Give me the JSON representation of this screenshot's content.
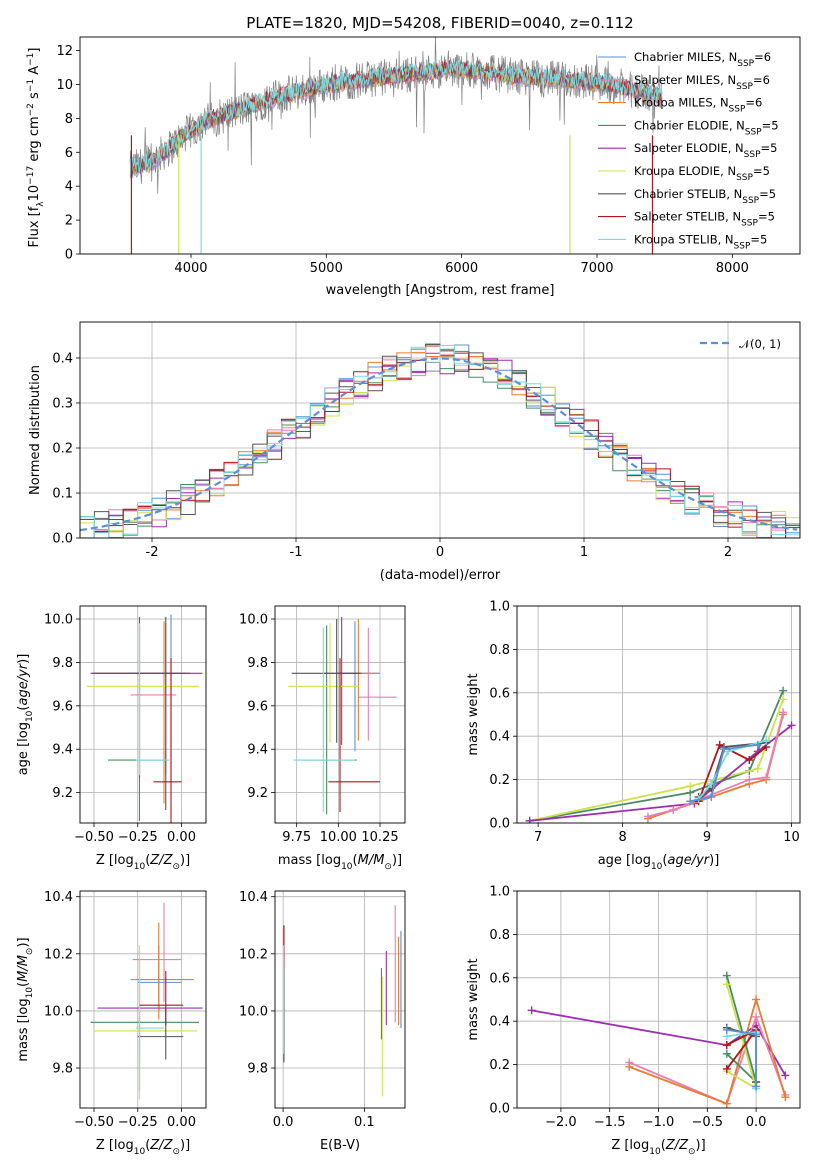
{
  "chart_data": [
    {
      "id": "spectrum",
      "type": "line",
      "title": "PLATE=1820, MJD=54208, FIBERID=0040, z=0.112",
      "xlabel": "wavelength [Angstrom, rest frame]",
      "ylabel": "Flux [f_λ10^-17 erg cm^-2 s^-1 A^-1]",
      "xlim": [
        3180,
        8500
      ],
      "ylim": [
        0,
        12.8
      ],
      "xticks": [
        4000,
        5000,
        6000,
        7000,
        8000
      ],
      "yticks": [
        0,
        2,
        4,
        6,
        8,
        10,
        12
      ],
      "grid": false,
      "legend_position": "right",
      "data_line_color": "#808080",
      "approx_continuum": {
        "x": [
          3550,
          3700,
          3850,
          3950,
          4100,
          4300,
          4500,
          4700,
          4900,
          5100,
          5300,
          5500,
          5700,
          5900,
          6100,
          6300,
          6500,
          6700,
          6900,
          7100,
          7300,
          7500
        ],
        "y": [
          5.0,
          5.4,
          6.3,
          7.0,
          7.8,
          8.3,
          8.9,
          9.4,
          9.8,
          10.1,
          10.3,
          10.5,
          10.7,
          10.9,
          10.8,
          10.6,
          10.4,
          10.3,
          10.2,
          10.0,
          9.6,
          9.2
        ]
      },
      "series": [
        {
          "name": "Chabrier MILES, N_SSP=6",
          "color": "#5b8fd6"
        },
        {
          "name": "Salpeter MILES, N_SSP=6",
          "color": "#e97fb1"
        },
        {
          "name": "Kroupa MILES, N_SSP=6",
          "color": "#e67d33"
        },
        {
          "name": "Chabrier ELODIE, N_SSP=5",
          "color": "#4c8a64"
        },
        {
          "name": "Salpeter ELODIE, N_SSP=5",
          "color": "#9b2fae"
        },
        {
          "name": "Kroupa ELODIE, N_SSP=5",
          "color": "#cde34e"
        },
        {
          "name": "Chabrier STELIB, N_SSP=5",
          "color": "#555555"
        },
        {
          "name": "Salpeter STELIB, N_SSP=5",
          "color": "#b0151d"
        },
        {
          "name": "Kroupa STELIB, N_SSP=5",
          "color": "#7fd9de"
        }
      ]
    },
    {
      "id": "residuals",
      "type": "line",
      "xlabel": "(data-model)/error",
      "ylabel": "Normed distribution",
      "xlim": [
        -2.5,
        2.5
      ],
      "ylim": [
        0,
        0.48
      ],
      "xticks": [
        -2,
        -1,
        0,
        1,
        2
      ],
      "yticks": [
        0.0,
        0.1,
        0.2,
        0.3,
        0.4
      ],
      "grid": true,
      "legend_position": "upper right",
      "gaussian_label": "𝒩(0, 1)",
      "gaussian_color": "#5b8fd6"
    },
    {
      "id": "age_vs_Z",
      "type": "scatter",
      "xlabel": "Z [log10(Z/Z⊙)]",
      "ylabel": "age [log10(age/yr)]",
      "xlim": [
        -0.58,
        0.14
      ],
      "ylim": [
        9.06,
        10.06
      ],
      "xticks": [
        -0.5,
        -0.25,
        0.0
      ],
      "xticklabels": [
        "−0.50",
        "−0.25",
        "0.00"
      ],
      "yticks": [
        9.2,
        9.4,
        9.6,
        9.8,
        10.0
      ],
      "grid": true,
      "points": [
        {
          "color": "#5b8fd6",
          "x": -0.06,
          "xerr": [
            0.24,
            0.06
          ],
          "y": 9.75,
          "yerr": [
            0.47,
            0.27
          ]
        },
        {
          "color": "#e97fb1",
          "x": -0.09,
          "xerr": [
            0.2,
            0.06
          ],
          "y": 9.65,
          "yerr": [
            0.37,
            0.33
          ]
        },
        {
          "color": "#e67d33",
          "x": -0.1,
          "xerr": [
            0.4,
            0.13
          ],
          "y": 9.75,
          "yerr": [
            0.6,
            0.24
          ]
        },
        {
          "color": "#4c8a64",
          "x": -0.24,
          "xerr": [
            0.18,
            0.16
          ],
          "y": 9.35,
          "yerr": [
            0.28,
            0.64
          ]
        },
        {
          "color": "#9b2fae",
          "x": -0.24,
          "xerr": [
            0.28,
            0.36
          ],
          "y": 9.75,
          "yerr": [
            0.48,
            0.26
          ]
        },
        {
          "color": "#cde34e",
          "x": -0.24,
          "xerr": [
            0.3,
            0.34
          ],
          "y": 9.69,
          "yerr": [
            0.41,
            0.29
          ]
        },
        {
          "color": "#555555",
          "x": -0.09,
          "xerr": [
            0.42,
            0.14
          ],
          "y": 9.75,
          "yerr": [
            0.63,
            0.26
          ]
        },
        {
          "color": "#b0151d",
          "x": -0.06,
          "xerr": [
            0.1,
            0.06
          ],
          "y": 9.25,
          "yerr": [
            0.23,
            0.57
          ]
        },
        {
          "color": "#7fd9de",
          "x": -0.24,
          "xerr": [
            0.02,
            0.17
          ],
          "y": 9.35,
          "yerr": [
            0.07,
            0.62
          ]
        }
      ]
    },
    {
      "id": "age_vs_mass",
      "type": "scatter",
      "xlabel": "mass [log10(M/M⊙)]",
      "ylabel": "",
      "xlim": [
        9.62,
        10.4
      ],
      "ylim": [
        9.06,
        10.06
      ],
      "xticks": [
        9.75,
        10.0,
        10.25
      ],
      "xticklabels": [
        "9.75",
        "10.00",
        "10.25"
      ],
      "yticks": [
        9.2,
        9.4,
        9.6,
        9.8,
        10.0
      ],
      "grid": true,
      "points": [
        {
          "color": "#5b8fd6",
          "x": 10.1,
          "xerr": [
            0.11,
            0.15
          ],
          "y": 9.75,
          "yerr": [
            0.36,
            0.24
          ]
        },
        {
          "color": "#e97fb1",
          "x": 10.18,
          "xerr": [
            0.06,
            0.17
          ],
          "y": 9.64,
          "yerr": [
            0.2,
            0.32
          ]
        },
        {
          "color": "#e67d33",
          "x": 10.12,
          "xerr": [
            0.04,
            0.13
          ],
          "y": 9.75,
          "yerr": [
            0.31,
            0.25
          ]
        },
        {
          "color": "#4c8a64",
          "x": 9.93,
          "xerr": [
            0.15,
            0.18
          ],
          "y": 9.35,
          "yerr": [
            0.25,
            0.62
          ]
        },
        {
          "color": "#9b2fae",
          "x": 10.02,
          "xerr": [
            0.11,
            0.12
          ],
          "y": 9.75,
          "yerr": [
            0.33,
            0.26
          ]
        },
        {
          "color": "#cde34e",
          "x": 9.95,
          "xerr": [
            0.25,
            0.17
          ],
          "y": 9.69,
          "yerr": [
            0.26,
            0.29
          ]
        },
        {
          "color": "#555555",
          "x": 9.99,
          "xerr": [
            0.27,
            0.14
          ],
          "y": 9.75,
          "yerr": [
            0.32,
            0.25
          ]
        },
        {
          "color": "#b0151d",
          "x": 10.01,
          "xerr": [
            0.07,
            0.24
          ],
          "y": 9.25,
          "yerr": [
            0.14,
            0.57
          ]
        },
        {
          "color": "#7fd9de",
          "x": 9.91,
          "xerr": [
            0.18,
            0.19
          ],
          "y": 9.35,
          "yerr": [
            0.24,
            0.61
          ]
        }
      ]
    },
    {
      "id": "weight_vs_age",
      "type": "line",
      "xlabel": "age [log10(age/yr)]",
      "ylabel": "mass weight",
      "xlim": [
        6.75,
        10.1
      ],
      "ylim": [
        0,
        1.0
      ],
      "xticks": [
        7,
        8,
        9,
        10
      ],
      "yticks": [
        0.0,
        0.2,
        0.4,
        0.6,
        0.8,
        1.0
      ],
      "grid": true,
      "series": [
        {
          "color": "#4c8a64",
          "x": [
            6.9,
            8.8,
            9.5,
            9.9
          ],
          "y": [
            0.01,
            0.14,
            0.24,
            0.61
          ]
        },
        {
          "color": "#cde34e",
          "x": [
            6.9,
            8.8,
            9.6,
            9.9
          ],
          "y": [
            0.01,
            0.17,
            0.25,
            0.57
          ]
        },
        {
          "color": "#9b2fae",
          "x": [
            6.9,
            8.85,
            9.6,
            10.0
          ],
          "y": [
            0.01,
            0.09,
            0.33,
            0.45
          ]
        },
        {
          "color": "#e67d33",
          "x": [
            8.3,
            8.6,
            9.5,
            9.7,
            9.9
          ],
          "y": [
            0.02,
            0.06,
            0.18,
            0.2,
            0.5
          ]
        },
        {
          "color": "#e97fb1",
          "x": [
            8.3,
            8.6,
            9.5,
            9.7,
            9.9
          ],
          "y": [
            0.03,
            0.06,
            0.2,
            0.21,
            0.51
          ]
        },
        {
          "color": "#b0151d",
          "x": [
            8.9,
            9.15,
            9.5,
            9.7
          ],
          "y": [
            0.1,
            0.36,
            0.29,
            0.35
          ]
        },
        {
          "color": "#555555",
          "x": [
            8.9,
            9.05,
            9.2,
            9.7
          ],
          "y": [
            0.12,
            0.16,
            0.35,
            0.37
          ]
        },
        {
          "color": "#7fd9de",
          "x": [
            8.9,
            9.05,
            9.25,
            9.7
          ],
          "y": [
            0.11,
            0.18,
            0.33,
            0.38
          ]
        },
        {
          "color": "#5b8fd6",
          "x": [
            8.8,
            9.05,
            9.2,
            9.6
          ],
          "y": [
            0.1,
            0.12,
            0.34,
            0.36
          ]
        }
      ]
    },
    {
      "id": "mass_vs_Z",
      "type": "scatter",
      "xlabel": "Z [log10(Z/Z⊙)]",
      "ylabel": "mass [log10(M/M⊙)]",
      "xlim": [
        -0.58,
        0.14
      ],
      "ylim": [
        9.66,
        10.42
      ],
      "xticks": [
        -0.5,
        -0.25,
        0.0
      ],
      "xticklabels": [
        "−0.50",
        "−0.25",
        "0.00"
      ],
      "yticks": [
        9.8,
        10.0,
        10.2,
        10.4
      ],
      "grid": true,
      "points": [
        {
          "color": "#5b8fd6",
          "x": -0.13,
          "xerr": [
            0.12,
            0.13
          ],
          "y": 10.1,
          "yerr": [
            0.1,
            0.13
          ]
        },
        {
          "color": "#e97fb1",
          "x": -0.1,
          "xerr": [
            0.18,
            0.1
          ],
          "y": 10.18,
          "yerr": [
            0.15,
            0.2
          ]
        },
        {
          "color": "#e67d33",
          "x": -0.13,
          "xerr": [
            0.16,
            0.2
          ],
          "y": 10.11,
          "yerr": [
            0.14,
            0.2
          ]
        },
        {
          "color": "#4c8a64",
          "x": -0.24,
          "xerr": [
            0.28,
            0.34
          ],
          "y": 9.96,
          "yerr": [
            0.24,
            0.15
          ]
        },
        {
          "color": "#9b2fae",
          "x": -0.24,
          "xerr": [
            0.24,
            0.36
          ],
          "y": 10.01,
          "yerr": [
            0.17,
            0.2
          ]
        },
        {
          "color": "#cde34e",
          "x": -0.24,
          "xerr": [
            0.26,
            0.33
          ],
          "y": 9.93,
          "yerr": [
            0.24,
            0.3
          ]
        },
        {
          "color": "#555555",
          "x": -0.09,
          "xerr": [
            0.16,
            0.1
          ],
          "y": 9.91,
          "yerr": [
            0.08,
            0.1
          ]
        },
        {
          "color": "#b0151d",
          "x": -0.09,
          "xerr": [
            0.15,
            0.1
          ],
          "y": 10.02,
          "yerr": [
            0.07,
            0.12
          ]
        },
        {
          "color": "#7fd9de",
          "x": -0.24,
          "xerr": [
            0.02,
            0.14
          ],
          "y": 9.94,
          "yerr": [
            0.22,
            0.04
          ]
        }
      ]
    },
    {
      "id": "mass_vs_ebv",
      "type": "scatter",
      "xlabel": "E(B-V)",
      "ylabel": "",
      "xlim": [
        -0.01,
        0.15
      ],
      "ylim": [
        9.66,
        10.42
      ],
      "xticks": [
        0.0,
        0.1
      ],
      "xticklabels": [
        "0.0",
        "0.1"
      ],
      "yticks": [
        9.8,
        10.0,
        10.2,
        10.4
      ],
      "grid": true,
      "points": [
        {
          "color": "#b0151d",
          "x": 0.001,
          "y": 10.1,
          "yerr": [
            0.0,
            0.2
          ]
        },
        {
          "color": "#555555",
          "x": 0.001,
          "y": 10.05,
          "yerr": [
            0.23,
            0.1
          ]
        },
        {
          "color": "#7fd9de",
          "x": 0.0005,
          "y": 9.95,
          "yerr": [
            0.1,
            0.28
          ]
        },
        {
          "color": "#cde34e",
          "x": 0.122,
          "y": 9.9,
          "yerr": [
            0.2,
            0.22
          ]
        },
        {
          "color": "#4c8a64",
          "x": 0.121,
          "y": 10.0,
          "yerr": [
            0.1,
            0.15
          ]
        },
        {
          "color": "#9b2fae",
          "x": 0.127,
          "y": 10.05,
          "yerr": [
            0.1,
            0.16
          ]
        },
        {
          "color": "#e97fb1",
          "x": 0.138,
          "y": 10.1,
          "yerr": [
            0.14,
            0.27
          ]
        },
        {
          "color": "#e67d33",
          "x": 0.142,
          "y": 10.1,
          "yerr": [
            0.15,
            0.16
          ]
        },
        {
          "color": "#5b8fd6",
          "x": 0.145,
          "y": 10.1,
          "yerr": [
            0.16,
            0.18
          ]
        }
      ]
    },
    {
      "id": "weight_vs_Z",
      "type": "line",
      "xlabel": "Z [log10(Z/Z⊙)]",
      "ylabel": "mass weight",
      "xlim": [
        -2.45,
        0.45
      ],
      "ylim": [
        0,
        1.0
      ],
      "xticks": [
        -2.0,
        -1.5,
        -1.0,
        -0.5,
        0.0
      ],
      "xticklabels": [
        "−2.0",
        "−1.5",
        "−1.0",
        "−0.5",
        "0.0"
      ],
      "yticks": [
        0.0,
        0.2,
        0.4,
        0.6,
        0.8,
        1.0
      ],
      "grid": true,
      "series": [
        {
          "color": "#9b2fae",
          "x": [
            -2.3,
            -0.3,
            0.0,
            0.3
          ],
          "y": [
            0.45,
            0.29,
            0.38,
            0.15
          ]
        },
        {
          "color": "#e97fb1",
          "x": [
            -1.3,
            -0.3,
            0.0,
            0.3
          ],
          "y": [
            0.21,
            0.02,
            0.42,
            0.06
          ]
        },
        {
          "color": "#e67d33",
          "x": [
            -1.3,
            -0.3,
            0.0,
            0.3
          ],
          "y": [
            0.19,
            0.02,
            0.5,
            0.05
          ]
        },
        {
          "color": "#4c8a64",
          "x": [
            -0.3,
            0.0,
            -0.3
          ],
          "y": [
            0.61,
            0.12,
            0.25
          ]
        },
        {
          "color": "#cde34e",
          "x": [
            -0.3,
            0.0,
            -0.3
          ],
          "y": [
            0.57,
            0.09,
            0.17
          ]
        },
        {
          "color": "#b0151d",
          "x": [
            -0.3,
            0.0,
            -0.3
          ],
          "y": [
            0.29,
            0.36,
            0.18
          ]
        },
        {
          "color": "#555555",
          "x": [
            -0.3,
            0.0,
            0.0
          ],
          "y": [
            0.37,
            0.33,
            0.12
          ]
        },
        {
          "color": "#7fd9de",
          "x": [
            -0.3,
            0.0,
            0.0
          ],
          "y": [
            0.33,
            0.35,
            0.09
          ]
        },
        {
          "color": "#5b8fd6",
          "x": [
            -0.3,
            0.0,
            0.0
          ],
          "y": [
            0.36,
            0.34,
            0.1
          ]
        }
      ]
    }
  ]
}
